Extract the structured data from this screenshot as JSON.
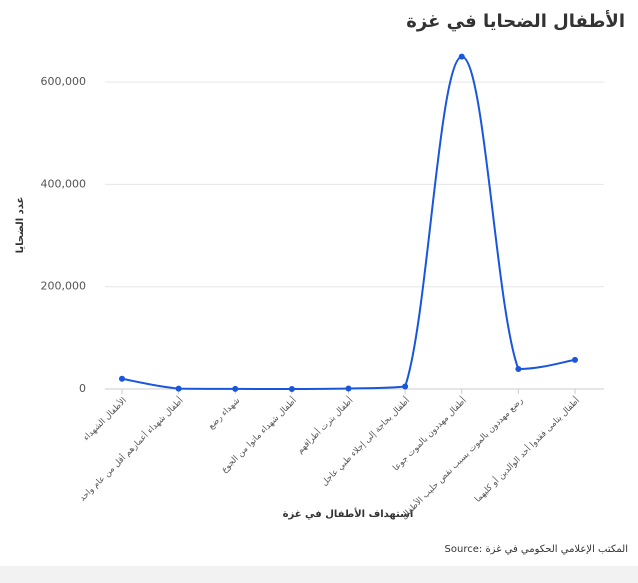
{
  "chart_data": {
    "type": "line",
    "title": "الأطفال الضحايا في غزة",
    "x_label": "استهداف الأطفال في غزة",
    "y_label": "عدد الضحايا",
    "source": "Source: المكتب الإعلامي الحكومي في غزة",
    "categories": [
      "الأطفال الشهداء",
      "أطفال شهداء أعمارهم أقل من عام واحد",
      "شهداء رضع",
      "أطفال شهداء ماتوا من الجوع",
      "أطفال بترت أطرافهم",
      "أطفال بحاجة إلى إجلاء طبي عاجل",
      "أطفال مهددون بالموت جوعا",
      "رضع مهددون بالموت بسبب نقص حليب الأطفال",
      "أطفال يتامى فقدوا أحد الوالدين أو كليهما"
    ],
    "series": [
      {
        "name": "عدد الضحايا",
        "color": "#1a56db",
        "values": [
          20000,
          800,
          200,
          50,
          1000,
          5000,
          650000,
          39000,
          57000
        ]
      }
    ],
    "ylim": [
      0,
      700000
    ],
    "yticks": [
      0,
      {
        "value": 200000,
        "label": "200,000"
      },
      {
        "value": 400000,
        "label": "400,000"
      },
      {
        "value": 600000,
        "label": "600,000"
      }
    ],
    "grid": true
  }
}
